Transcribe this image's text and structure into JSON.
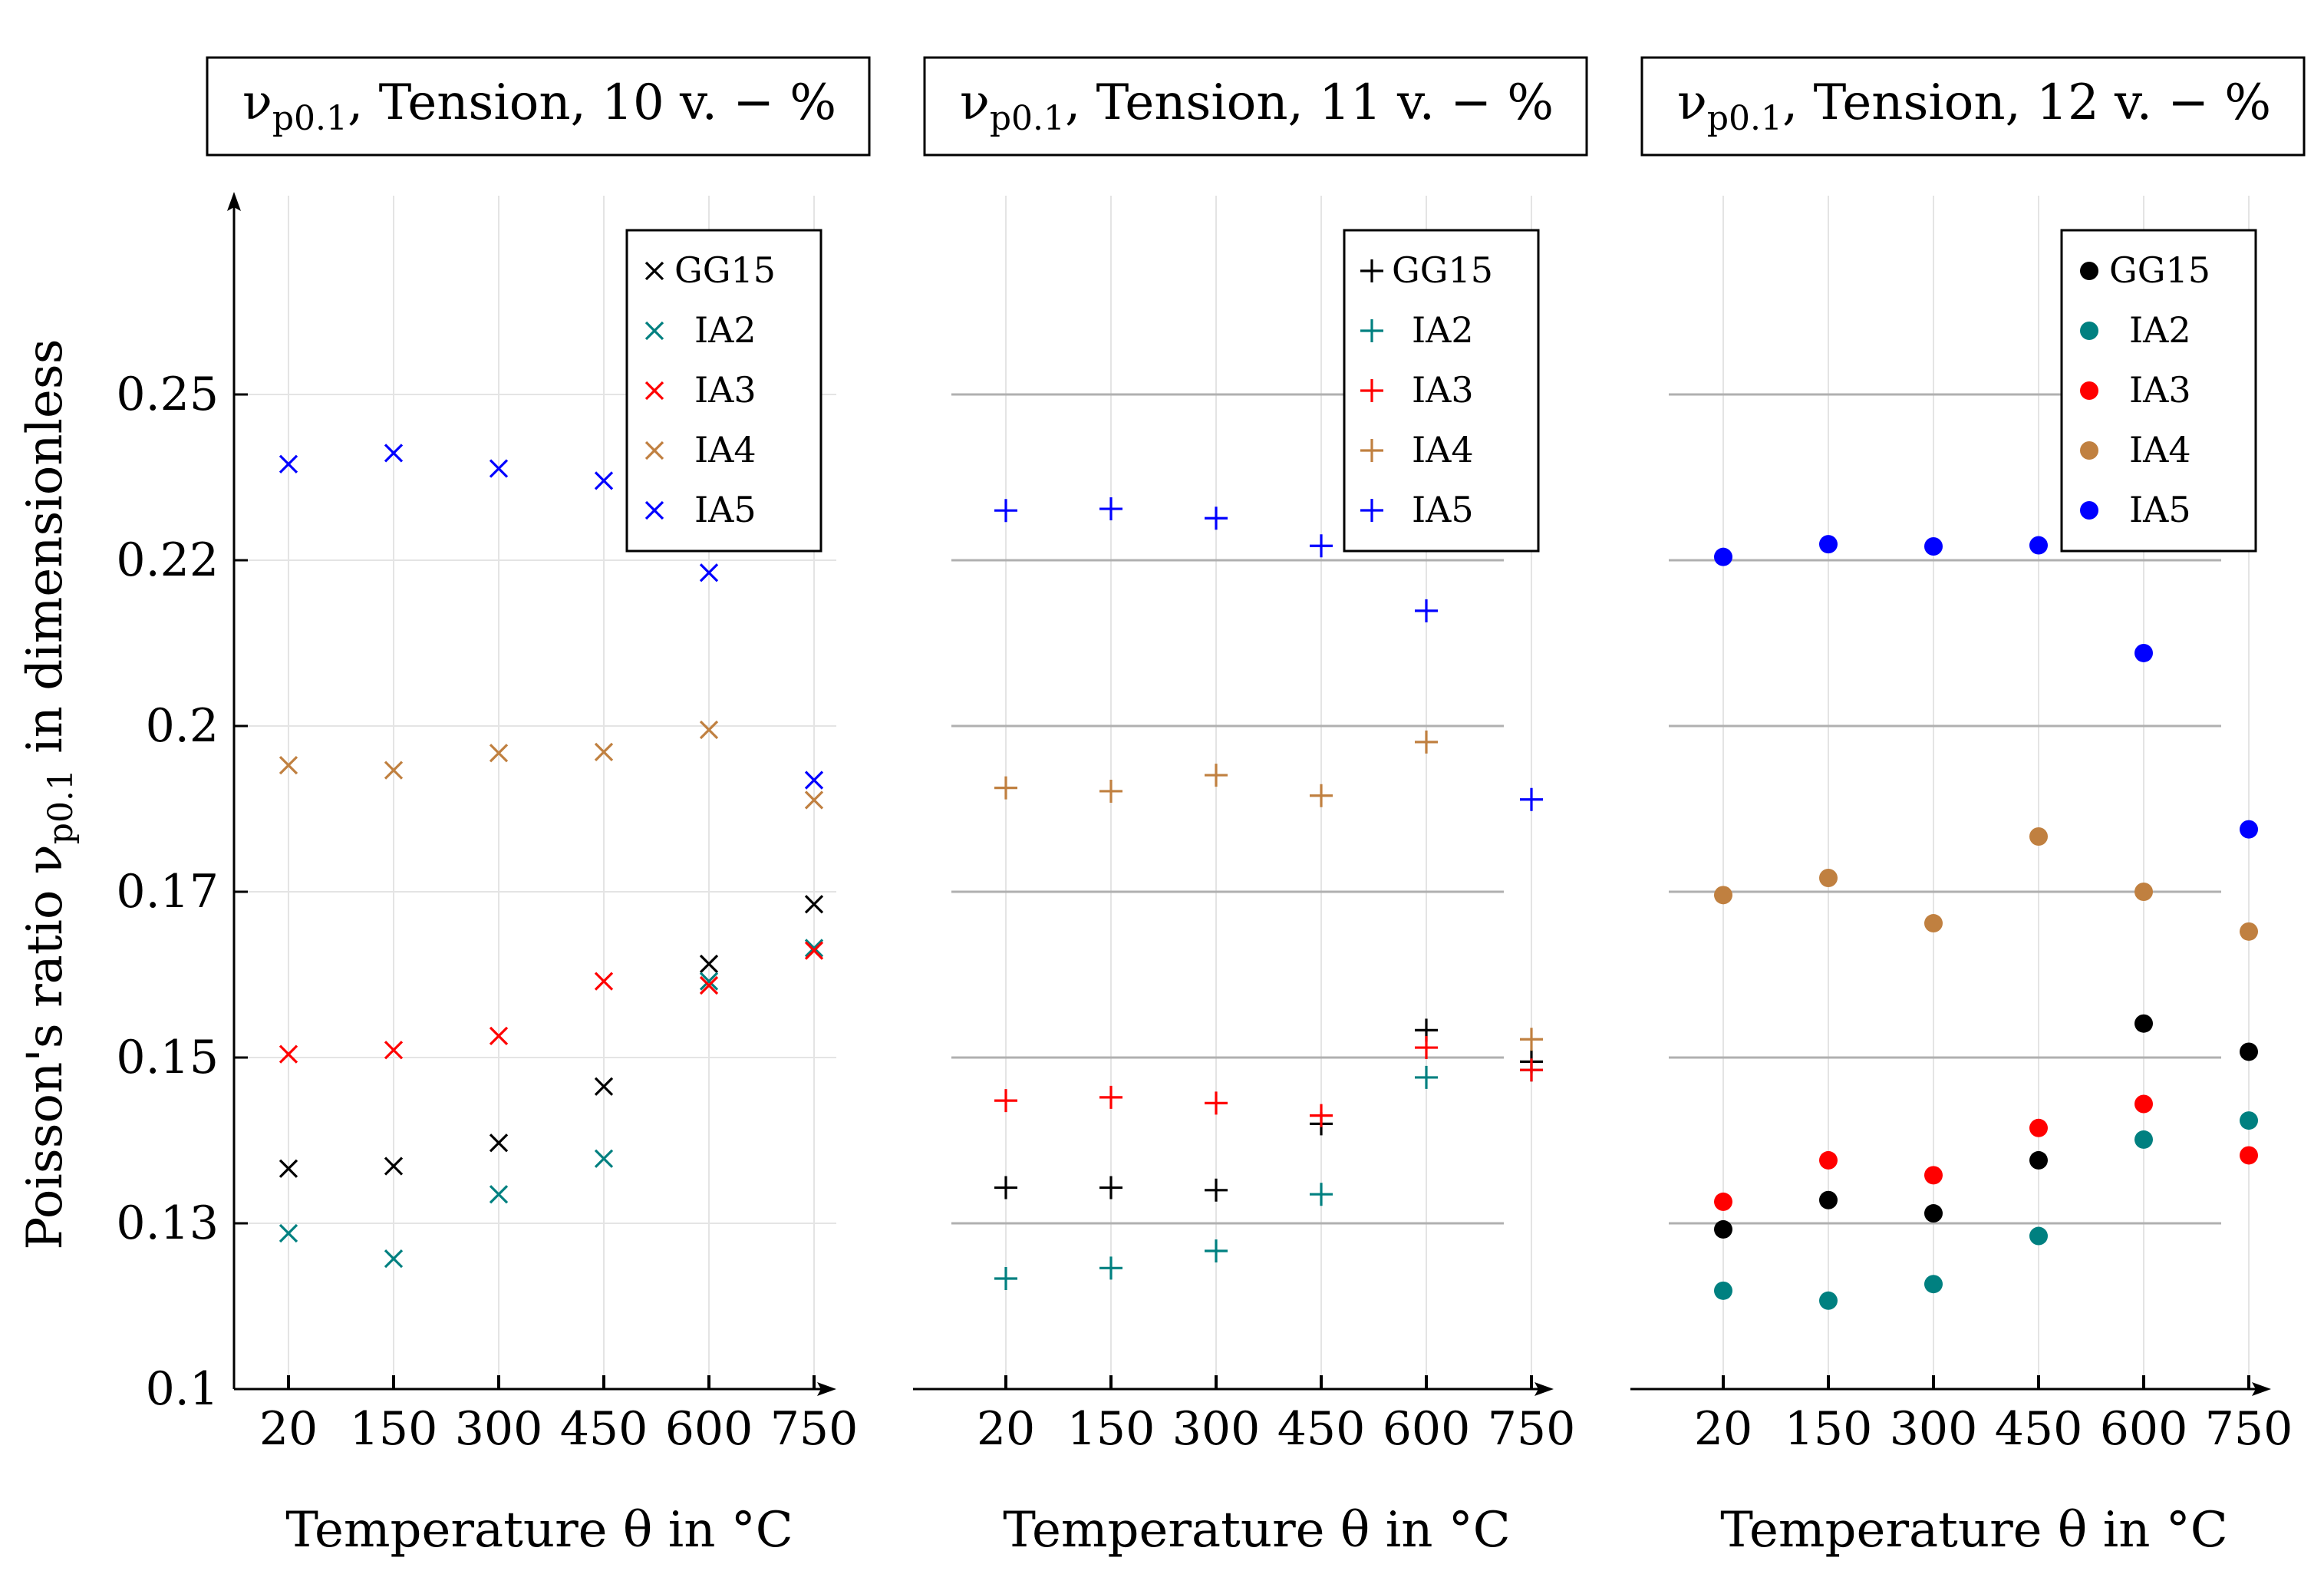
{
  "figure": {
    "ylabel": "Poisson's ratio ν",
    "ylabel_sub": "p0.1",
    "ylabel_suffix": " in dimensionless"
  },
  "colors": {
    "GG15": "#000000",
    "IA2": "#008080",
    "IA3": "#ff0000",
    "IA4": "#c08040",
    "IA5": "#0000ff",
    "grid": "#e4e4e4",
    "hline": "#b0b0b0"
  },
  "chart_data": [
    {
      "type": "scatter",
      "marker": "x",
      "title": "ν",
      "title_sub": "p0.1",
      "title_rest": ", Tension, 10 v. − %",
      "xlabel": "Temperature θ in °C",
      "ylabel": "Poisson's ratio ν p0.1 in dimensionless",
      "categories": [
        "20",
        "150",
        "300",
        "450",
        "600",
        "750"
      ],
      "yticks": [
        "0.1",
        "0.13",
        "0.15",
        "0.17",
        "0.2",
        "0.22",
        "0.25"
      ],
      "ylim": [
        0.1,
        0.27
      ],
      "legend_position": "top-right",
      "show_yticks": true,
      "show_hlines": false,
      "series": [
        {
          "name": "GG15",
          "values": [
            0.1366,
            0.1369,
            0.1397,
            0.1465,
            0.1613,
            0.1685
          ]
        },
        {
          "name": "IA2",
          "values": [
            0.1282,
            0.1236,
            0.1335,
            0.1378,
            0.1592,
            0.1632
          ]
        },
        {
          "name": "IA3",
          "values": [
            0.1504,
            0.1509,
            0.1526,
            0.1592,
            0.1587,
            0.1629
          ]
        },
        {
          "name": "IA4",
          "values": [
            0.1929,
            0.192,
            0.1951,
            0.1953,
            0.1993,
            0.1866
          ]
        },
        {
          "name": "IA5",
          "values": [
            0.2374,
            0.2394,
            0.2366,
            0.2344,
            0.2185,
            0.1902
          ]
        }
      ]
    },
    {
      "type": "scatter",
      "marker": "+",
      "title": "ν",
      "title_sub": "p0.1",
      "title_rest": ", Tension, 11 v. − %",
      "xlabel": "Temperature θ in °C",
      "categories": [
        "20",
        "150",
        "300",
        "450",
        "600",
        "750"
      ],
      "ylim": [
        0.1,
        0.27
      ],
      "legend_position": "top-right",
      "show_yticks": false,
      "show_hlines": true,
      "series": [
        {
          "name": "GG15",
          "values": [
            0.1343,
            0.1343,
            0.134,
            0.142,
            0.1533,
            0.1495
          ]
        },
        {
          "name": "IA2",
          "values": [
            0.12,
            0.1219,
            0.125,
            0.1335,
            0.1476,
            0.1485
          ]
        },
        {
          "name": "IA3",
          "values": [
            0.1448,
            0.1452,
            0.1445,
            0.143,
            0.1512,
            0.1485
          ]
        },
        {
          "name": "IA4",
          "values": [
            0.1888,
            0.1882,
            0.1911,
            0.1874,
            0.1971,
            0.1522
          ]
        },
        {
          "name": "IA5",
          "values": [
            0.229,
            0.2293,
            0.2276,
            0.2226,
            0.2139,
            0.1867
          ]
        }
      ]
    },
    {
      "type": "scatter",
      "marker": "dot",
      "title": "ν",
      "title_sub": "p0.1",
      "title_rest": ", Tension, 12 v. − %",
      "xlabel": "Temperature θ in °C",
      "categories": [
        "20",
        "150",
        "300",
        "450",
        "600",
        "750"
      ],
      "ylim": [
        0.1,
        0.27
      ],
      "legend_position": "top-right",
      "show_yticks": false,
      "show_hlines": true,
      "series": [
        {
          "name": "GG15",
          "values": [
            0.1289,
            0.1328,
            0.1312,
            0.1376,
            0.1541,
            0.1507
          ]
        },
        {
          "name": "IA2",
          "values": [
            0.1178,
            0.116,
            0.119,
            0.1277,
            0.1401,
            0.1424
          ]
        },
        {
          "name": "IA3",
          "values": [
            0.1326,
            0.1376,
            0.1358,
            0.1415,
            0.1444,
            0.1382
          ]
        },
        {
          "name": "IA4",
          "values": [
            0.1696,
            0.1725,
            0.1662,
            0.18,
            0.17,
            0.1652
          ]
        },
        {
          "name": "IA5",
          "values": [
            0.2206,
            0.2229,
            0.2225,
            0.2227,
            0.2088,
            0.1813
          ]
        }
      ]
    }
  ]
}
